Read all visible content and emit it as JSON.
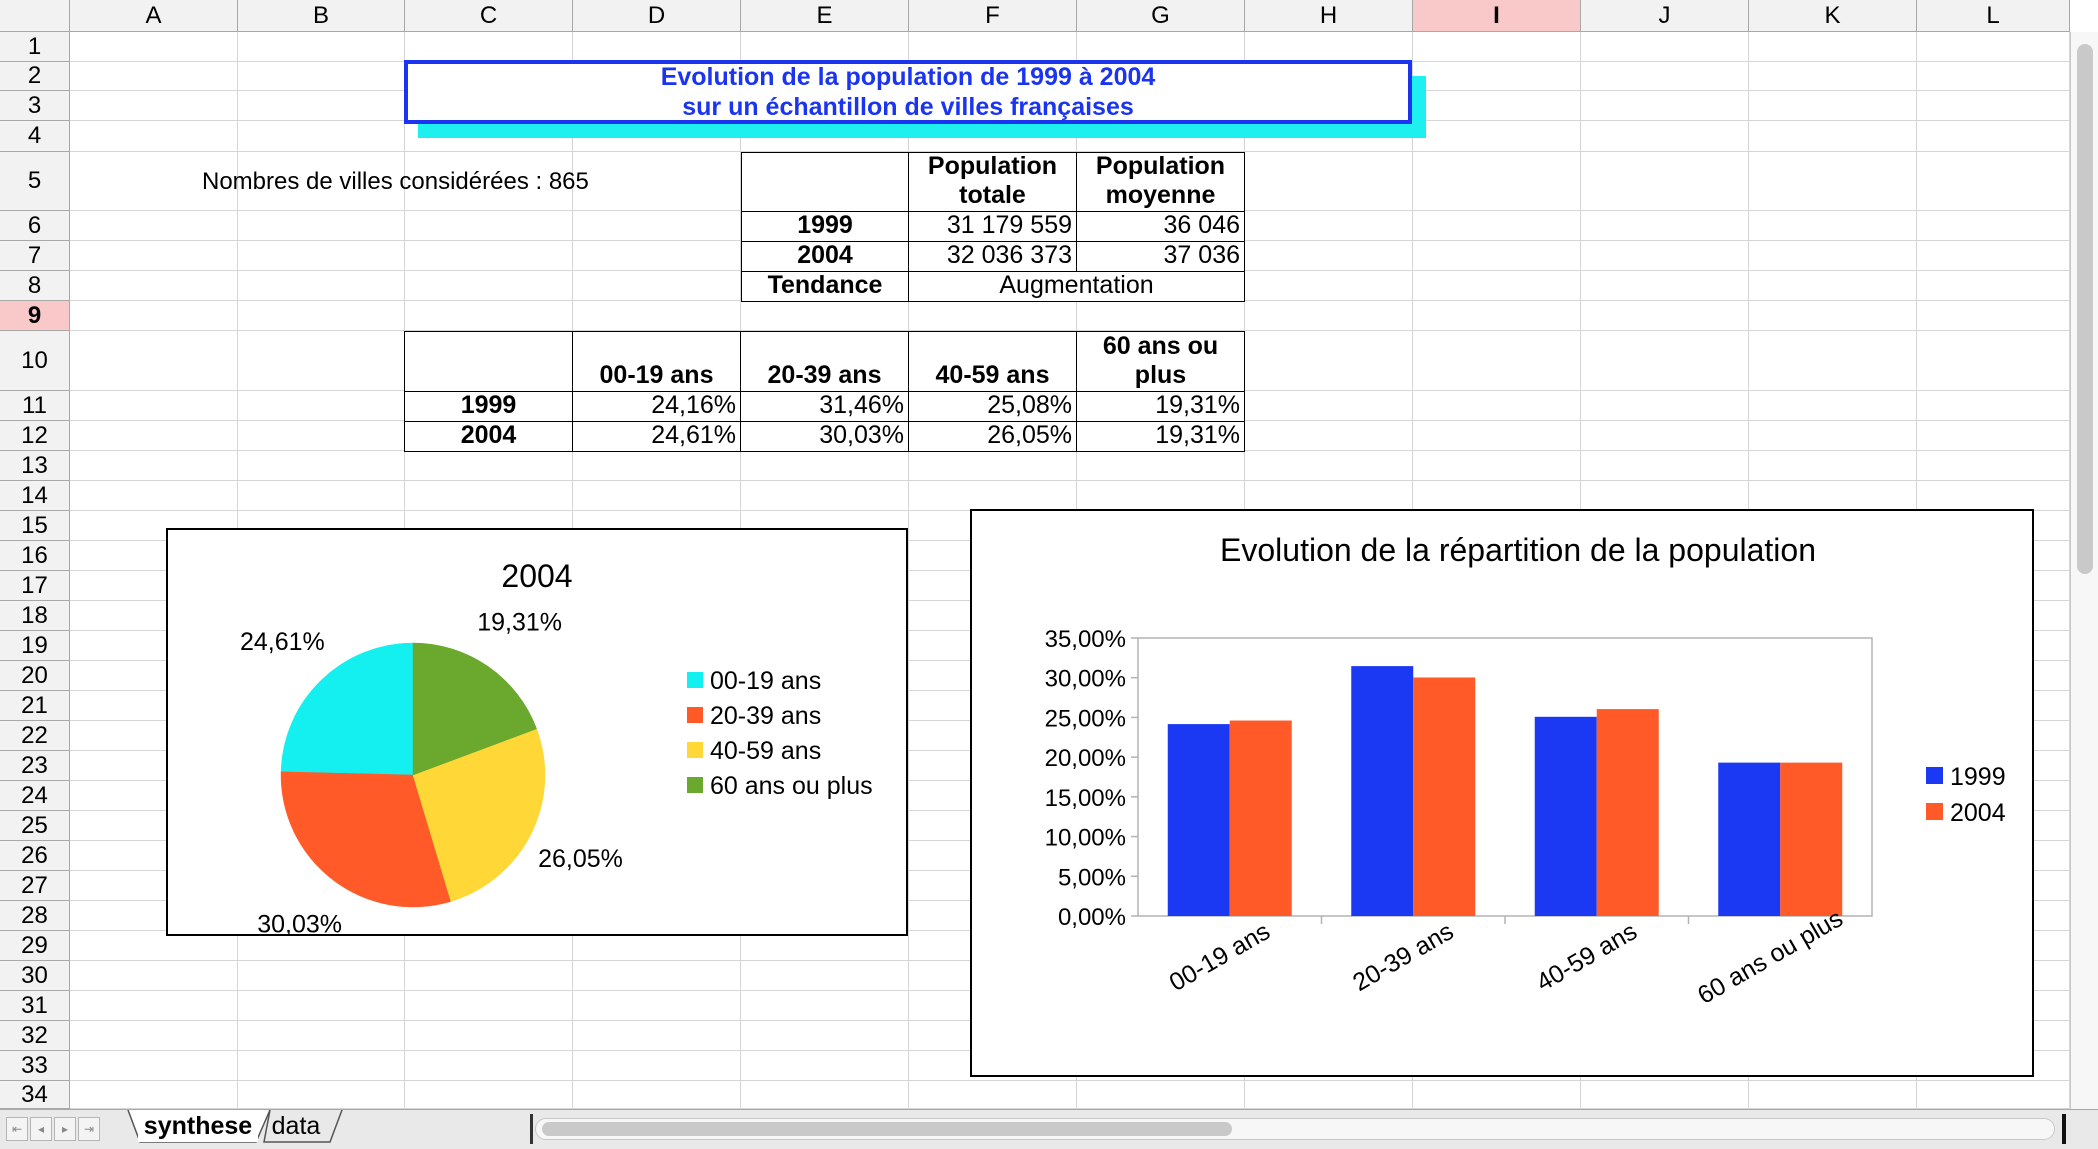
{
  "spreadsheet": {
    "columns": [
      "A",
      "B",
      "C",
      "D",
      "E",
      "F",
      "G",
      "H",
      "I",
      "J",
      "K",
      "L"
    ],
    "selected_column": "I",
    "rows": [
      "1",
      "2",
      "3",
      "4",
      "5",
      "6",
      "7",
      "8",
      "9",
      "10",
      "11",
      "12",
      "13",
      "14",
      "15",
      "16",
      "17",
      "18",
      "19",
      "20",
      "21",
      "22",
      "23",
      "24",
      "25",
      "26",
      "27",
      "28",
      "29",
      "30",
      "31",
      "32",
      "33",
      "34"
    ],
    "selected_row": "9"
  },
  "title": {
    "line1": "Evolution de la population de 1999 à 2004",
    "line2": "sur un échantillon de villes françaises"
  },
  "city_count_label": "Nombres de villes considérées : 865",
  "population_table": {
    "header_total": "Population totale",
    "header_avg": "Population moyenne",
    "rows": [
      {
        "label": "1999",
        "total": "31 179 559",
        "avg": "36 046"
      },
      {
        "label": "2004",
        "total": "32 036 373",
        "avg": "37 036"
      }
    ],
    "trend_label": "Tendance",
    "trend_value": "Augmentation"
  },
  "age_table": {
    "headers": [
      "00-19 ans",
      "20-39 ans",
      "40-59 ans",
      "60 ans ou plus"
    ],
    "rows": [
      {
        "label": "1999",
        "values": [
          "24,16%",
          "31,46%",
          "25,08%",
          "19,31%"
        ]
      },
      {
        "label": "2004",
        "values": [
          "24,61%",
          "30,03%",
          "26,05%",
          "19,31%"
        ]
      }
    ]
  },
  "colors": {
    "cyan": "#14f0f0",
    "orange": "#ff5a28",
    "yellow": "#ffd838",
    "green": "#6aa82e",
    "blue": "#1b38f2",
    "title_blue": "#1a34f0"
  },
  "chart_data": [
    {
      "type": "pie",
      "title": "2004",
      "slices": [
        {
          "label": "00-19 ans",
          "value": 24.61,
          "data_label": "24,61%",
          "color": "#14f0f0"
        },
        {
          "label": "20-39 ans",
          "value": 30.03,
          "data_label": "30,03%",
          "color": "#ff5a28"
        },
        {
          "label": "40-59 ans",
          "value": 26.05,
          "data_label": "26,05%",
          "color": "#ffd838"
        },
        {
          "label": "60 ans ou plus",
          "value": 19.31,
          "data_label": "19,31%",
          "color": "#6aa82e"
        }
      ],
      "legend_position": "right"
    },
    {
      "type": "bar",
      "title": "Evolution de la répartition de la population",
      "categories": [
        "00-19 ans",
        "20-39 ans",
        "40-59 ans",
        "60 ans ou plus"
      ],
      "series": [
        {
          "name": "1999",
          "values": [
            24.16,
            31.46,
            25.08,
            19.31
          ],
          "color": "#1b38f2"
        },
        {
          "name": "2004",
          "values": [
            24.61,
            30.03,
            26.05,
            19.31
          ],
          "color": "#ff5a28"
        }
      ],
      "ylim": [
        0,
        35
      ],
      "yticks": [
        "0,00%",
        "5,00%",
        "10,00%",
        "15,00%",
        "20,00%",
        "25,00%",
        "30,00%",
        "35,00%"
      ],
      "grid": false,
      "legend_position": "right"
    }
  ],
  "tabs": [
    {
      "label": "synthese",
      "active": true
    },
    {
      "label": "data",
      "active": false
    }
  ]
}
